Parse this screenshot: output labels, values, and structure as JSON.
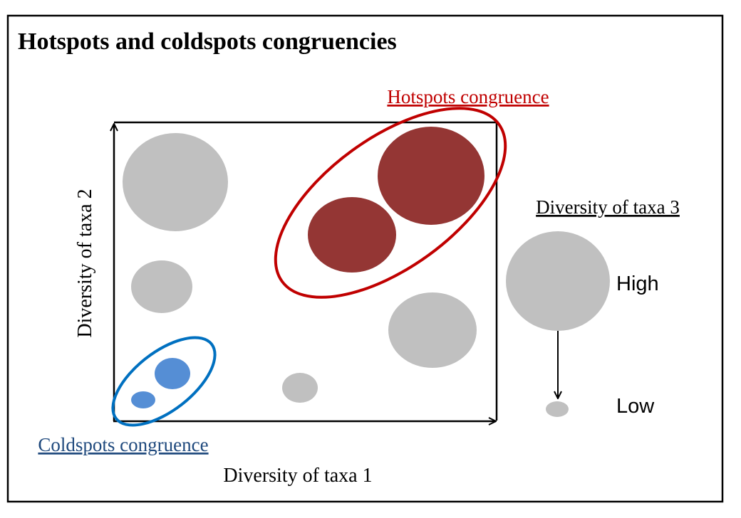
{
  "title": "Hotspots and coldspots congruencies",
  "labels": {
    "hotspots": "Hotspots congruence",
    "coldspots": "Coldspots congruence",
    "x_axis": "Diversity of taxa 1",
    "y_axis": "Diversity of taxa 2",
    "legend_title": "Diversity of taxa 3",
    "legend_high": "High",
    "legend_low": "Low"
  },
  "colors": {
    "neutral_circle": "#c0c0c0",
    "hotspot_fill": "#943634",
    "hotspot_outline": "#c00000",
    "coldspot_fill": "#558ed5",
    "coldspot_outline": "#0070c0",
    "hotspot_label": "#c00000",
    "coldspot_label": "#1f497d"
  }
}
